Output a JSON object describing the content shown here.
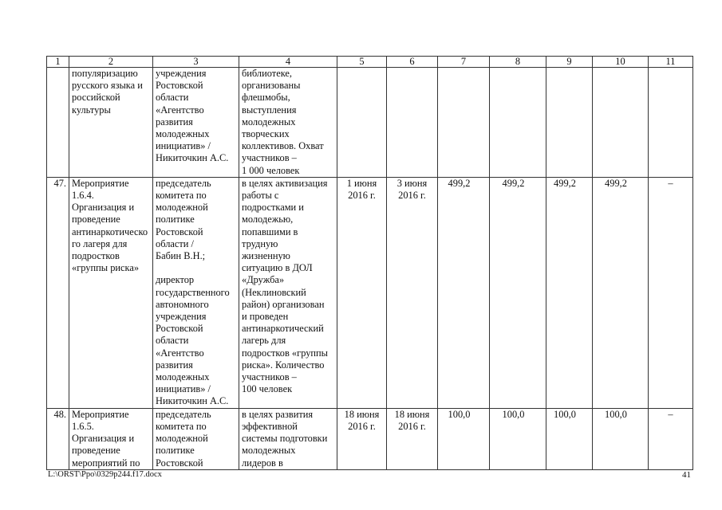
{
  "table": {
    "headers": [
      "1",
      "2",
      "3",
      "4",
      "5",
      "6",
      "7",
      "8",
      "9",
      "10",
      "11"
    ],
    "rows": [
      {
        "cells": [
          "",
          "популяризацию\nрусского языка и\nроссийской\nкультуры",
          "учреждения\nРостовской\nобласти\n«Агентство\nразвития\nмолодежных\nинициатив» /\nНикиточкин А.С.",
          "библиотеке,\nорганизованы\nфлешмобы,\nвыступления\nмолодежных\nтворческих\nколлективов. Охват\nучастников –\n1 000 человек",
          "",
          "",
          "",
          "",
          "",
          "",
          ""
        ]
      },
      {
        "cells": [
          "47.",
          "Мероприятие\n1.6.4.\nОрганизация и\nпроведение\nантинаркотическо\nго лагеря для\nподростков\n«группы риска»",
          "председатель\nкомитета по\nмолодежной\nполитике\nРостовской\nобласти /\nБабин В.Н.;\n\nдиректор\nгосударственного\nавтономного\nучреждения\nРостовской\nобласти\n«Агентство\nразвития\nмолодежных\nинициатив» /\nНикиточкин А.С.",
          "в целях активизация\nработы с\nподростками и\nмолодежью,\nпопавшими в\nтрудную\nжизненную\nситуацию в ДОЛ\n«Дружба»\n(Неклиновский\nрайон) организован\nи проведен\nантинаркотический\nлагерь для\nподростков «группы\nриска». Количество\nучастников –\n100 человек",
          "1 июня\n2016 г.",
          "3 июня\n2016 г.",
          "499,2",
          "499,2",
          "499,2",
          "499,2",
          "–"
        ]
      },
      {
        "cells": [
          "48.",
          "Мероприятие\n1.6.5.\nОрганизация и\nпроведение\nмероприятий по",
          "председатель\nкомитета по\nмолодежной\nполитике\nРостовской",
          "в целях развития\nэффективной\nсистемы подготовки\nмолодежных\nлидеров в",
          "18 июня\n2016 г.",
          "18 июня\n2016 г.",
          "100,0",
          "100,0",
          "100,0",
          "100,0",
          "–"
        ]
      }
    ]
  },
  "footer": {
    "file_path": "L:\\ORST\\Ppo\\0329p244.f17.docx",
    "page_number": "41"
  }
}
